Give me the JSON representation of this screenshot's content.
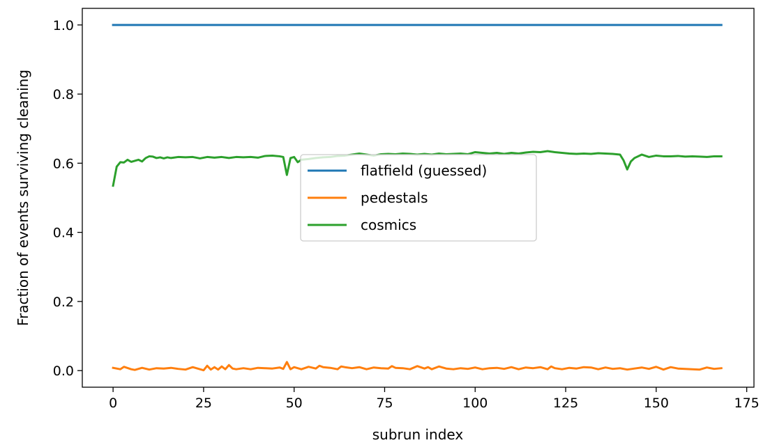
{
  "chart_data": {
    "type": "line",
    "title": "",
    "xlabel": "subrun index",
    "ylabel": "Fraction of events surviving cleaning",
    "xlim": [
      -8.5,
      177
    ],
    "ylim": [
      -0.048,
      1.048
    ],
    "xticks": [
      0,
      25,
      50,
      75,
      100,
      125,
      150,
      175
    ],
    "yticks": [
      0.0,
      0.2,
      0.4,
      0.6,
      0.8,
      1.0
    ],
    "xtick_labels": [
      "0",
      "25",
      "50",
      "75",
      "100",
      "125",
      "150",
      "175"
    ],
    "ytick_labels": [
      "0.0",
      "0.2",
      "0.4",
      "0.6",
      "0.8",
      "1.0"
    ],
    "grid": false,
    "legend_position": "center",
    "series": [
      {
        "name": "flatfield (guessed)",
        "color": "#1f77b4",
        "x": [
          0,
          168
        ],
        "y": [
          1.0,
          1.0
        ]
      },
      {
        "name": "pedestals",
        "color": "#ff7f0e",
        "x": [
          0,
          2,
          3,
          5,
          6,
          8,
          10,
          12,
          14,
          16,
          18,
          20,
          22,
          24,
          25,
          26,
          27,
          28,
          29,
          30,
          31,
          32,
          33,
          34,
          36,
          38,
          40,
          42,
          44,
          46,
          47,
          48,
          49,
          50,
          52,
          54,
          56,
          57,
          58,
          60,
          62,
          63,
          64,
          66,
          68,
          70,
          72,
          74,
          76,
          77,
          78,
          80,
          82,
          84,
          86,
          87,
          88,
          90,
          92,
          94,
          96,
          98,
          100,
          102,
          104,
          106,
          108,
          110,
          112,
          114,
          116,
          118,
          120,
          121,
          122,
          124,
          126,
          128,
          130,
          132,
          134,
          136,
          138,
          140,
          142,
          144,
          146,
          148,
          150,
          152,
          154,
          156,
          158,
          160,
          162,
          164,
          166,
          168
        ],
        "y": [
          0.008,
          0.004,
          0.011,
          0.004,
          0.002,
          0.008,
          0.003,
          0.007,
          0.006,
          0.008,
          0.005,
          0.003,
          0.01,
          0.004,
          0.001,
          0.014,
          0.003,
          0.01,
          0.003,
          0.012,
          0.004,
          0.016,
          0.006,
          0.004,
          0.007,
          0.004,
          0.008,
          0.007,
          0.006,
          0.009,
          0.005,
          0.025,
          0.004,
          0.01,
          0.004,
          0.011,
          0.006,
          0.014,
          0.01,
          0.008,
          0.004,
          0.012,
          0.01,
          0.007,
          0.01,
          0.004,
          0.009,
          0.007,
          0.006,
          0.013,
          0.008,
          0.007,
          0.004,
          0.013,
          0.006,
          0.01,
          0.004,
          0.012,
          0.006,
          0.004,
          0.007,
          0.005,
          0.009,
          0.004,
          0.007,
          0.008,
          0.005,
          0.01,
          0.004,
          0.009,
          0.007,
          0.01,
          0.004,
          0.012,
          0.007,
          0.004,
          0.008,
          0.006,
          0.01,
          0.009,
          0.004,
          0.009,
          0.005,
          0.007,
          0.003,
          0.006,
          0.009,
          0.005,
          0.011,
          0.003,
          0.01,
          0.006,
          0.005,
          0.004,
          0.003,
          0.009,
          0.005,
          0.007
        ]
      },
      {
        "name": "cosmics",
        "color": "#2ca02c",
        "x": [
          0,
          1,
          2,
          3,
          4,
          5,
          6,
          7,
          8,
          9,
          10,
          11,
          12,
          13,
          14,
          15,
          16,
          18,
          20,
          22,
          24,
          26,
          28,
          30,
          32,
          34,
          36,
          38,
          40,
          42,
          44,
          46,
          47,
          48,
          49,
          50,
          51,
          52,
          54,
          56,
          58,
          60,
          62,
          64,
          66,
          68,
          70,
          72,
          74,
          76,
          78,
          80,
          82,
          84,
          86,
          88,
          90,
          92,
          94,
          96,
          98,
          100,
          102,
          104,
          106,
          108,
          110,
          112,
          114,
          116,
          118,
          120,
          122,
          124,
          126,
          128,
          130,
          132,
          134,
          136,
          138,
          140,
          141,
          142,
          143,
          144,
          146,
          148,
          150,
          152,
          154,
          156,
          158,
          160,
          162,
          164,
          166,
          168
        ],
        "y": [
          0.535,
          0.59,
          0.603,
          0.602,
          0.61,
          0.604,
          0.607,
          0.61,
          0.605,
          0.615,
          0.62,
          0.619,
          0.615,
          0.617,
          0.614,
          0.617,
          0.615,
          0.618,
          0.617,
          0.618,
          0.614,
          0.618,
          0.616,
          0.618,
          0.615,
          0.618,
          0.617,
          0.618,
          0.616,
          0.621,
          0.622,
          0.62,
          0.618,
          0.566,
          0.615,
          0.618,
          0.603,
          0.61,
          0.612,
          0.615,
          0.617,
          0.618,
          0.621,
          0.622,
          0.625,
          0.628,
          0.625,
          0.622,
          0.626,
          0.627,
          0.626,
          0.628,
          0.627,
          0.625,
          0.627,
          0.625,
          0.628,
          0.626,
          0.627,
          0.628,
          0.626,
          0.632,
          0.63,
          0.628,
          0.63,
          0.627,
          0.63,
          0.628,
          0.631,
          0.633,
          0.632,
          0.635,
          0.632,
          0.63,
          0.628,
          0.627,
          0.628,
          0.627,
          0.629,
          0.628,
          0.627,
          0.625,
          0.608,
          0.582,
          0.605,
          0.615,
          0.625,
          0.618,
          0.622,
          0.62,
          0.62,
          0.621,
          0.619,
          0.62,
          0.619,
          0.618,
          0.62,
          0.62
        ]
      }
    ]
  }
}
